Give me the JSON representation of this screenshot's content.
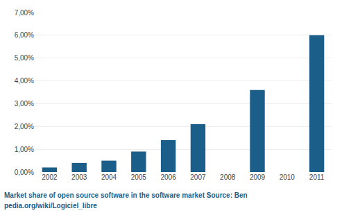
{
  "chart_data": {
    "type": "bar",
    "categories": [
      "2002",
      "2003",
      "2004",
      "2005",
      "2006",
      "2007",
      "2008",
      "2009",
      "2010",
      "2011"
    ],
    "values": [
      0.002,
      0.004,
      0.005,
      0.009,
      0.014,
      0.021,
      0.0,
      0.036,
      0.0,
      0.06
    ],
    "color": "#1b5e8a",
    "ylim": [
      0,
      0.07
    ],
    "yticks": [
      {
        "value": 0.0,
        "label": "0,00%"
      },
      {
        "value": 0.01,
        "label": "1,00%"
      },
      {
        "value": 0.02,
        "label": "2,00%"
      },
      {
        "value": 0.03,
        "label": "3,00%"
      },
      {
        "value": 0.04,
        "label": "4,00%"
      },
      {
        "value": 0.05,
        "label": "5,00%"
      },
      {
        "value": 0.06,
        "label": "6,00%"
      },
      {
        "value": 0.07,
        "label": "7,00%"
      }
    ],
    "grid": true,
    "annotations": [
      "Market share of open source software in the software market Source: Ben",
      "pedia.org/wiki/Logiciel_libre"
    ]
  }
}
